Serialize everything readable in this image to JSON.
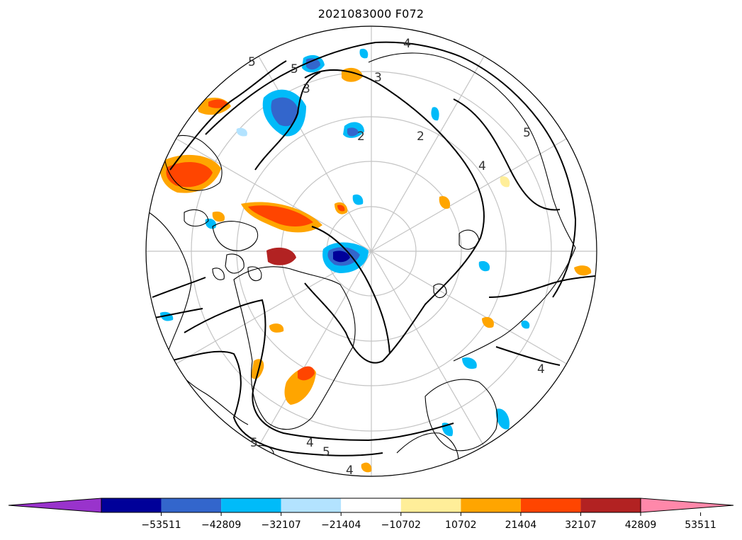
{
  "title": "2021083000 F072",
  "contour_labels": [
    "2",
    "2",
    "3",
    "3",
    "4",
    "4",
    "4",
    "4",
    "4",
    "5",
    "5",
    "5",
    "5",
    "5"
  ],
  "colorbar": {
    "ticks": [
      "−53511",
      "−42809",
      "−32107",
      "−21404",
      "−10702",
      "10702",
      "21404",
      "32107",
      "42809",
      "53511"
    ],
    "colors": [
      "#9933cc",
      "#000099",
      "#3366cc",
      "#00bbf9",
      "#b3e3ff",
      "#ffffff",
      "#ffee99",
      "#ffa500",
      "#ff4500",
      "#b22222",
      "#ff88aa"
    ]
  }
}
